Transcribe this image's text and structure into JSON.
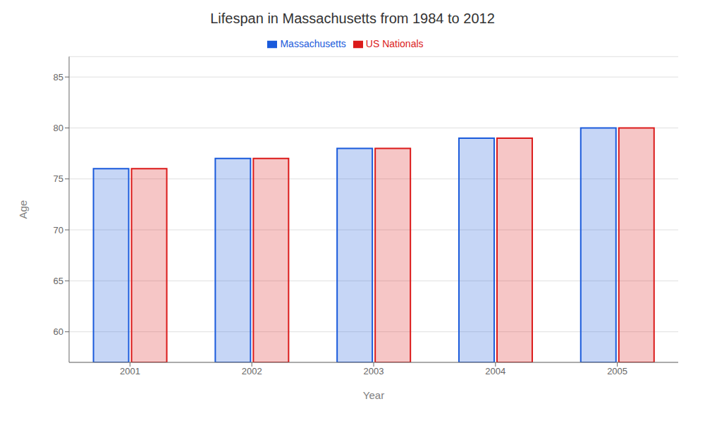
{
  "chart_data": {
    "type": "bar",
    "title": "Lifespan in Massachusetts from 1984 to 2012",
    "xlabel": "Year",
    "ylabel": "Age",
    "categories": [
      "2001",
      "2002",
      "2003",
      "2004",
      "2005"
    ],
    "series": [
      {
        "name": "Massachusetts",
        "color": "#1a5adb",
        "values": [
          76,
          77,
          78,
          79,
          80
        ]
      },
      {
        "name": "US Nationals",
        "color": "#db1a1a",
        "values": [
          76,
          77,
          78,
          79,
          80
        ]
      }
    ],
    "ylim": [
      57,
      87
    ],
    "yticks": [
      60,
      65,
      70,
      75,
      80,
      85
    ],
    "grid": true,
    "legend": "top"
  }
}
